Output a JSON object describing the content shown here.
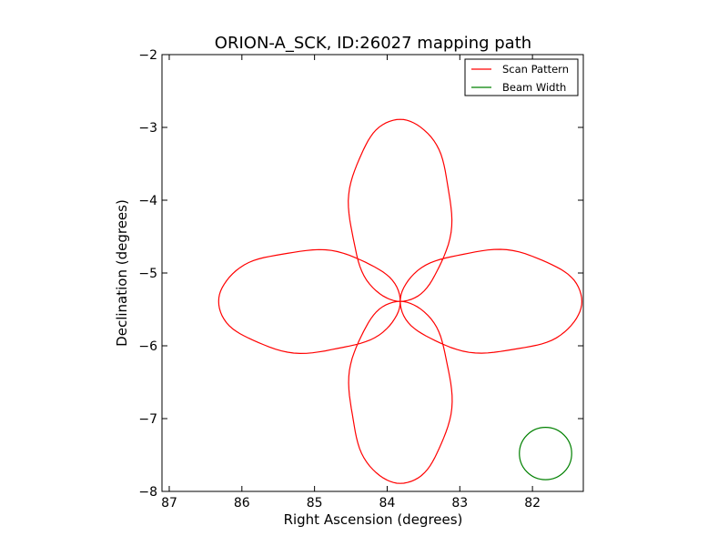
{
  "chart_data": {
    "type": "line",
    "title": "ORION-A_SCK, ID:26027 mapping path",
    "xlabel": "Right Ascension (degrees)",
    "ylabel": "Declination (degrees)",
    "xlim": [
      87.1,
      81.3
    ],
    "ylim": [
      -8,
      -2
    ],
    "x_inverted": true,
    "xticks": [
      87,
      86,
      85,
      84,
      83,
      82
    ],
    "yticks": [
      -8,
      -7,
      -6,
      -5,
      -4,
      -3,
      -2
    ],
    "grid": false,
    "legend_position": "top-right",
    "legend": [
      {
        "label": "Scan Pattern",
        "color": "#ff0000"
      },
      {
        "label": "Beam Width",
        "color": "#008000"
      }
    ],
    "series": [
      {
        "name": "Scan Pattern",
        "color": "#ff0000",
        "center": {
          "ra": 83.82,
          "dec": -5.39
        },
        "lobe_length_deg": 2.5,
        "lobe_half_width_deg": 0.7,
        "lobes": 4,
        "start": {
          "ra": 86.3,
          "dec": -5.38
        },
        "end": {
          "ra": 86.32,
          "dec": -5.55
        }
      },
      {
        "name": "Beam Width",
        "color": "#008000",
        "center": {
          "ra": 81.82,
          "dec": -7.48
        },
        "radius_deg": 0.36
      }
    ]
  }
}
